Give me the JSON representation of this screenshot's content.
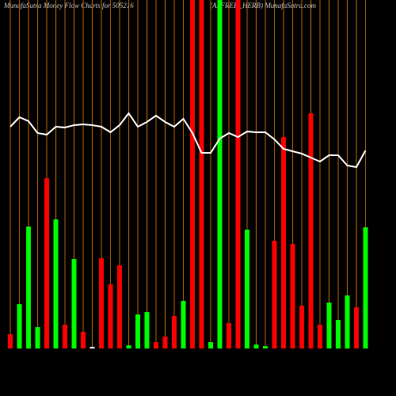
{
  "chart_data": {
    "type": "bar",
    "title": "MunafaSutra  Money Flow  Charts for 505216",
    "subtitle": "(ALFRED_HERB) MunafaSutra.com",
    "values": [
      18,
      56,
      154,
      27,
      215,
      163,
      30,
      113,
      21,
      2,
      114,
      81,
      105,
      4,
      43,
      46,
      8,
      15,
      41,
      60,
      440,
      440,
      8,
      440,
      32,
      440,
      150,
      5,
      3,
      136,
      267,
      132,
      54,
      297,
      30,
      58,
      36,
      67,
      52,
      153
    ],
    "colors": [
      "#ff0000",
      "#00ff00",
      "#00ff00",
      "#00ff00",
      "#ff0000",
      "#00ff00",
      "#ff0000",
      "#00ff00",
      "#ff0000",
      "#ffffff",
      "#ff0000",
      "#ff0000",
      "#ff0000",
      "#00ff00",
      "#00ff00",
      "#00ff00",
      "#ff0000",
      "#ff0000",
      "#ff0000",
      "#00ff00",
      "#ff0000",
      "#ff0000",
      "#00ff00",
      "#00ff00",
      "#ff0000",
      "#ff0000",
      "#00ff00",
      "#00ff00",
      "#00ff00",
      "#ff0000",
      "#ff0000",
      "#ff0000",
      "#ff0000",
      "#ff0000",
      "#ff0000",
      "#00ff00",
      "#00ff00",
      "#00ff00",
      "#ff0000",
      "#00ff00"
    ],
    "line": {
      "color": "#ffffff",
      "values": [
        280,
        292,
        287,
        272,
        270,
        280,
        279,
        282,
        283,
        282,
        280,
        273,
        282,
        297,
        280,
        286,
        294,
        286,
        280,
        290,
        272,
        247,
        247,
        265,
        272,
        267,
        274,
        273,
        273,
        264,
        252,
        249,
        246,
        241,
        236,
        244,
        244,
        231,
        229,
        250
      ]
    },
    "ylim": [
      0,
      440
    ],
    "grid": true,
    "grid_color": "#b8650a"
  }
}
